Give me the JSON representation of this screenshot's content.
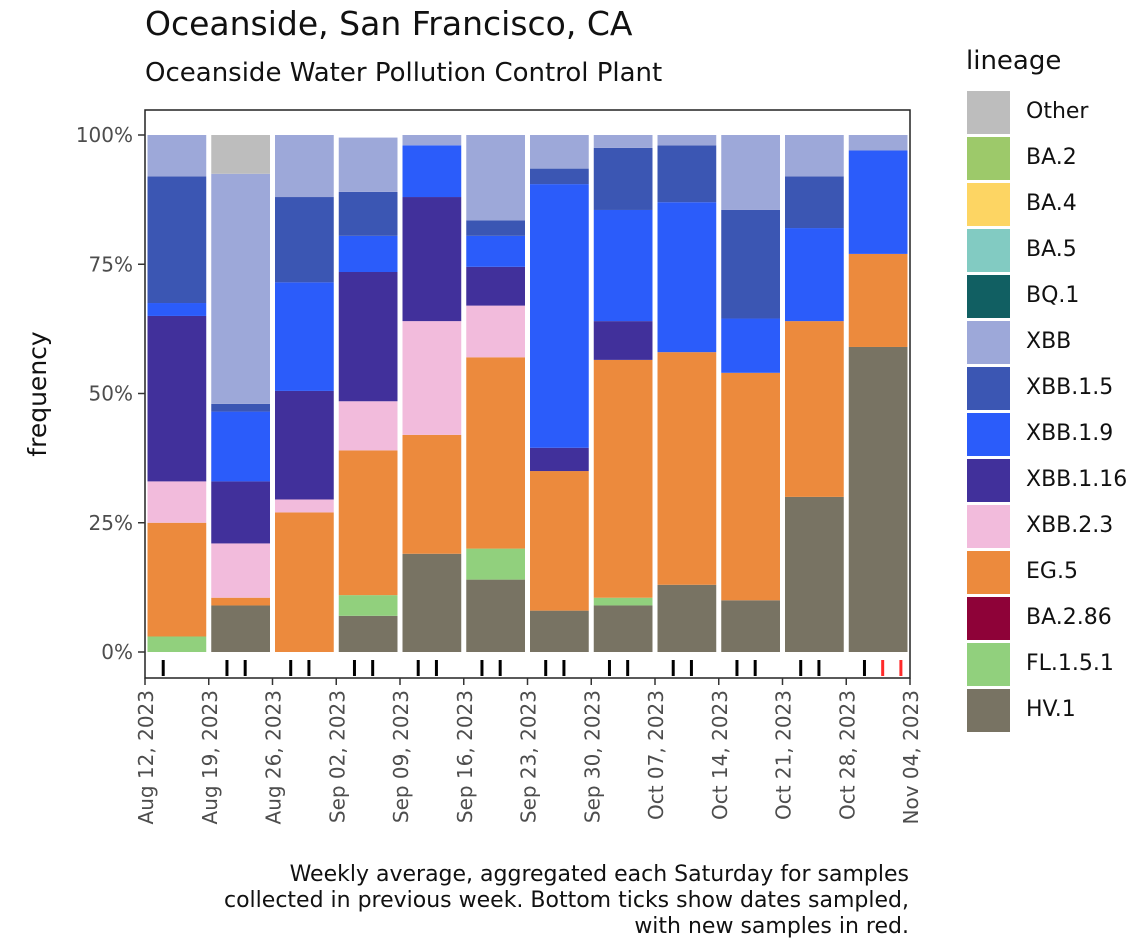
{
  "title": "Oceanside, San Francisco, CA",
  "subtitle": "Oceanside Water Pollution Control Plant",
  "caption": "Weekly average, aggregated each Saturday for samples\ncollected in previous week. Bottom ticks show dates sampled,\nwith new samples in red.",
  "legend_title": "lineage",
  "colors": {
    "Other": "#bdbdbd",
    "BA.2": "#9dc96a",
    "BA.4": "#fdd563",
    "BA.5": "#82cbc2",
    "BQ.1": "#115f62",
    "XBB": "#9da8d9",
    "XBB.1.5": "#3b56b3",
    "XBB.1.9": "#2b5cfa",
    "XBB.1.16": "#41309b",
    "XBB.2.3": "#f2bbdc",
    "EG.5": "#ec8a3d",
    "BA.2.86": "#8e0238",
    "FL.1.5.1": "#91d07d",
    "HV.1": "#787363"
  },
  "chart_data": {
    "type": "bar",
    "stacked": true,
    "title": "Oceanside, San Francisco, CA",
    "subtitle": "Oceanside Water Pollution Control Plant",
    "xlabel": "",
    "ylabel": "frequency",
    "ylim": [
      0,
      100
    ],
    "yticks": [
      0,
      25,
      50,
      75,
      100
    ],
    "ytick_labels": [
      "0%",
      "25%",
      "50%",
      "75%",
      "100%"
    ],
    "x_range": [
      "2023-08-12",
      "2023-11-04"
    ],
    "xtick_labels": [
      "Aug 12, 2023",
      "Aug 19, 2023",
      "Aug 26, 2023",
      "Sep 02, 2023",
      "Sep 09, 2023",
      "Sep 16, 2023",
      "Sep 23, 2023",
      "Sep 30, 2023",
      "Oct 07, 2023",
      "Oct 14, 2023",
      "Oct 21, 2023",
      "Oct 28, 2023",
      "Nov 04, 2023"
    ],
    "categories": [
      "Aug 15",
      "Aug 22",
      "Aug 29",
      "Sep 05",
      "Sep 12",
      "Sep 19",
      "Sep 26",
      "Oct 03",
      "Oct 10",
      "Oct 17",
      "Oct 24",
      "Oct 31"
    ],
    "stack_order": [
      "HV.1",
      "FL.1.5.1",
      "EG.5",
      "XBB.2.3",
      "XBB.1.16",
      "XBB.1.9",
      "XBB.1.5",
      "XBB",
      "Other"
    ],
    "series": [
      {
        "name": "HV.1",
        "values": [
          0,
          9,
          0,
          7,
          19,
          14,
          8,
          9,
          13,
          10,
          30,
          59
        ]
      },
      {
        "name": "FL.1.5.1",
        "values": [
          3,
          0,
          0,
          4,
          0,
          6,
          0,
          1.5,
          0,
          0,
          0,
          0
        ]
      },
      {
        "name": "EG.5",
        "values": [
          22,
          1.5,
          27,
          28,
          23,
          37,
          27,
          46,
          45,
          44,
          34,
          18
        ]
      },
      {
        "name": "XBB.2.3",
        "values": [
          8,
          10.5,
          2.5,
          9.5,
          22,
          10,
          0,
          0,
          0,
          0,
          0,
          0
        ]
      },
      {
        "name": "XBB.1.16",
        "values": [
          32,
          12,
          21,
          25,
          24,
          7.5,
          4.5,
          7.5,
          0,
          0,
          0,
          0
        ]
      },
      {
        "name": "XBB.1.9",
        "values": [
          2.5,
          13.5,
          21,
          7,
          10,
          6,
          51,
          21.5,
          29,
          10.5,
          18,
          20
        ]
      },
      {
        "name": "XBB.1.5",
        "values": [
          24.5,
          1.5,
          16.5,
          8.5,
          0,
          3,
          3,
          12,
          11,
          21,
          10,
          0
        ]
      },
      {
        "name": "XBB",
        "values": [
          8,
          44.5,
          12,
          10.5,
          2,
          16.5,
          6.5,
          2.5,
          2,
          14.5,
          8,
          3
        ]
      },
      {
        "name": "Other",
        "values": [
          0,
          7.5,
          0,
          0,
          0,
          0,
          0,
          0,
          0,
          0,
          0,
          0
        ]
      }
    ],
    "legend": [
      "Other",
      "BA.2",
      "BA.4",
      "BA.5",
      "BQ.1",
      "XBB",
      "XBB.1.5",
      "XBB.1.9",
      "XBB.1.16",
      "XBB.2.3",
      "EG.5",
      "BA.2.86",
      "FL.1.5.1",
      "HV.1"
    ],
    "legend_position": "right",
    "sample_ticks": {
      "black": [
        "2023-08-14",
        "2023-08-21",
        "2023-08-23",
        "2023-08-28",
        "2023-08-30",
        "2023-09-04",
        "2023-09-06",
        "2023-09-11",
        "2023-09-13",
        "2023-09-18",
        "2023-09-20",
        "2023-09-25",
        "2023-09-27",
        "2023-10-02",
        "2023-10-04",
        "2023-10-09",
        "2023-10-11",
        "2023-10-16",
        "2023-10-18",
        "2023-10-23",
        "2023-10-25",
        "2023-10-30"
      ],
      "red": [
        "2023-11-01",
        "2023-11-03"
      ]
    }
  }
}
